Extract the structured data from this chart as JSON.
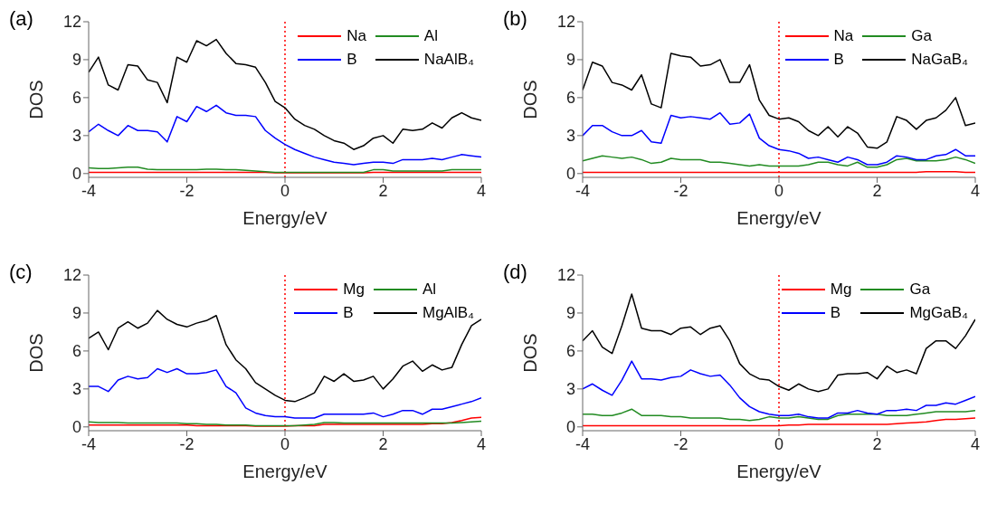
{
  "chart_data": [
    {
      "type": "line",
      "annotations": [
        "(a)"
      ],
      "xlabel": "Energy/eV",
      "ylabel": "DOS",
      "xlim": [
        -4,
        4
      ],
      "xticks": [
        -4,
        -2,
        0,
        2,
        4
      ],
      "ylim": [
        -0.3,
        12
      ],
      "yticks": [
        0,
        3,
        6,
        9,
        12
      ],
      "legend": "top right",
      "line_style": "solid",
      "ref_lines": [
        {
          "axis": "x",
          "value": 0,
          "color": "#ff0000",
          "line_style": "dotted"
        }
      ],
      "x": [
        -4,
        -3.8,
        -3.6,
        -3.4,
        -3.2,
        -3,
        -2.8,
        -2.6,
        -2.4,
        -2.2,
        -2,
        -1.8,
        -1.6,
        -1.4,
        -1.2,
        -1,
        -0.8,
        -0.6,
        -0.4,
        -0.2,
        0,
        0.2,
        0.4,
        0.6,
        0.8,
        1,
        1.2,
        1.4,
        1.6,
        1.8,
        2,
        2.2,
        2.4,
        2.6,
        2.8,
        3,
        3.2,
        3.4,
        3.6,
        3.8,
        4
      ],
      "series": [
        {
          "name": "Na",
          "color": "#ff0000",
          "values": [
            0.1,
            0.1,
            0.1,
            0.1,
            0.1,
            0.1,
            0.1,
            0.1,
            0.1,
            0.1,
            0.1,
            0.1,
            0.1,
            0.1,
            0.1,
            0.1,
            0.1,
            0.1,
            0.1,
            0.05,
            0.05,
            0.05,
            0.05,
            0.05,
            0.05,
            0.05,
            0.05,
            0.05,
            0.05,
            0.1,
            0.1,
            0.1,
            0.1,
            0.1,
            0.1,
            0.1,
            0.1,
            0.1,
            0.1,
            0.1,
            0.1
          ]
        },
        {
          "name": "Al",
          "color": "#228b22",
          "values": [
            0.45,
            0.4,
            0.4,
            0.45,
            0.5,
            0.5,
            0.35,
            0.3,
            0.3,
            0.3,
            0.3,
            0.3,
            0.35,
            0.35,
            0.3,
            0.3,
            0.25,
            0.2,
            0.15,
            0.1,
            0.1,
            0.1,
            0.1,
            0.1,
            0.1,
            0.1,
            0.1,
            0.1,
            0.1,
            0.3,
            0.3,
            0.2,
            0.2,
            0.2,
            0.2,
            0.2,
            0.2,
            0.3,
            0.3,
            0.3,
            0.3
          ]
        },
        {
          "name": "B",
          "color": "#0000ff",
          "values": [
            3.3,
            3.9,
            3.4,
            3,
            3.8,
            3.4,
            3.4,
            3.3,
            2.5,
            4.5,
            4.1,
            5.3,
            4.9,
            5.4,
            4.8,
            4.6,
            4.6,
            4.5,
            3.4,
            2.8,
            2.3,
            1.9,
            1.6,
            1.3,
            1.1,
            0.9,
            0.8,
            0.7,
            0.8,
            0.9,
            0.9,
            0.8,
            1.1,
            1.1,
            1.1,
            1.2,
            1.1,
            1.3,
            1.5,
            1.4,
            1.3
          ]
        },
        {
          "name": "NaAlB₄",
          "color": "#000000",
          "values": [
            8,
            9.2,
            7,
            6.6,
            8.6,
            8.5,
            7.4,
            7.2,
            5.6,
            9.2,
            8.8,
            10.5,
            10.1,
            10.6,
            9.5,
            8.7,
            8.6,
            8.4,
            7.2,
            5.7,
            5.2,
            4.3,
            3.8,
            3.5,
            3,
            2.6,
            2.4,
            1.9,
            2.2,
            2.8,
            3,
            2.4,
            3.5,
            3.4,
            3.5,
            4,
            3.6,
            4.4,
            4.8,
            4.4,
            4.2
          ]
        }
      ]
    },
    {
      "type": "line",
      "annotations": [
        "(b)"
      ],
      "xlabel": "Energy/eV",
      "ylabel": "DOS",
      "xlim": [
        -4,
        4
      ],
      "xticks": [
        -4,
        -2,
        0,
        2,
        4
      ],
      "ylim": [
        -0.3,
        12
      ],
      "yticks": [
        0,
        3,
        6,
        9,
        12
      ],
      "legend": "top right",
      "line_style": "solid",
      "ref_lines": [
        {
          "axis": "x",
          "value": 0,
          "color": "#ff0000",
          "line_style": "dotted"
        }
      ],
      "x": [
        -4,
        -3.8,
        -3.6,
        -3.4,
        -3.2,
        -3,
        -2.8,
        -2.6,
        -2.4,
        -2.2,
        -2,
        -1.8,
        -1.6,
        -1.4,
        -1.2,
        -1,
        -0.8,
        -0.6,
        -0.4,
        -0.2,
        0,
        0.2,
        0.4,
        0.6,
        0.8,
        1,
        1.2,
        1.4,
        1.6,
        1.8,
        2,
        2.2,
        2.4,
        2.6,
        2.8,
        3,
        3.2,
        3.4,
        3.6,
        3.8,
        4
      ],
      "series": [
        {
          "name": "Na",
          "color": "#ff0000",
          "values": [
            0.1,
            0.1,
            0.1,
            0.1,
            0.1,
            0.1,
            0.1,
            0.1,
            0.1,
            0.1,
            0.1,
            0.1,
            0.1,
            0.1,
            0.1,
            0.1,
            0.1,
            0.1,
            0.1,
            0.1,
            0.1,
            0.1,
            0.1,
            0.1,
            0.1,
            0.1,
            0.1,
            0.1,
            0.1,
            0.1,
            0.1,
            0.1,
            0.1,
            0.1,
            0.1,
            0.15,
            0.15,
            0.15,
            0.15,
            0.1,
            0.1
          ]
        },
        {
          "name": "Ga",
          "color": "#228b22",
          "values": [
            1,
            1.2,
            1.4,
            1.3,
            1.2,
            1.3,
            1.1,
            0.8,
            0.9,
            1.2,
            1.1,
            1.1,
            1.1,
            0.9,
            0.9,
            0.8,
            0.7,
            0.6,
            0.7,
            0.6,
            0.6,
            0.6,
            0.6,
            0.7,
            0.9,
            0.9,
            0.7,
            0.6,
            0.9,
            0.5,
            0.5,
            0.7,
            1.1,
            1.2,
            1,
            1,
            1,
            1.1,
            1.3,
            1.1,
            0.8
          ]
        },
        {
          "name": "B",
          "color": "#0000ff",
          "values": [
            3,
            3.8,
            3.8,
            3.3,
            3,
            3,
            3.4,
            2.5,
            2.4,
            4.6,
            4.4,
            4.5,
            4.4,
            4.3,
            4.8,
            3.9,
            4,
            4.7,
            2.8,
            2.2,
            1.9,
            1.8,
            1.6,
            1.2,
            1.3,
            1.1,
            0.9,
            1.3,
            1.1,
            0.7,
            0.7,
            0.9,
            1.4,
            1.3,
            1.1,
            1.1,
            1.4,
            1.5,
            1.9,
            1.4,
            1.4
          ]
        },
        {
          "name": "NaGaB₄",
          "color": "#000000",
          "values": [
            6.6,
            8.8,
            8.5,
            7.2,
            7,
            6.6,
            7.8,
            5.5,
            5.2,
            9.5,
            9.3,
            9.2,
            8.5,
            8.6,
            9,
            7.2,
            7.2,
            8.6,
            5.8,
            4.6,
            4.3,
            4.4,
            4.1,
            3.4,
            3,
            3.7,
            2.9,
            3.7,
            3.2,
            2.1,
            2,
            2.5,
            4.5,
            4.2,
            3.5,
            4.2,
            4.4,
            5,
            6,
            3.8,
            4
          ]
        }
      ]
    },
    {
      "type": "line",
      "annotations": [
        "(c)"
      ],
      "xlabel": "Energy/eV",
      "ylabel": "DOS",
      "xlim": [
        -4,
        4
      ],
      "xticks": [
        -4,
        -2,
        0,
        2,
        4
      ],
      "ylim": [
        -0.3,
        12
      ],
      "yticks": [
        0,
        3,
        6,
        9,
        12
      ],
      "legend": "top right",
      "line_style": "solid",
      "ref_lines": [
        {
          "axis": "x",
          "value": 0,
          "color": "#ff0000",
          "line_style": "dotted"
        }
      ],
      "x": [
        -4,
        -3.8,
        -3.6,
        -3.4,
        -3.2,
        -3,
        -2.8,
        -2.6,
        -2.4,
        -2.2,
        -2,
        -1.8,
        -1.6,
        -1.4,
        -1.2,
        -1,
        -0.8,
        -0.6,
        -0.4,
        -0.2,
        0,
        0.2,
        0.4,
        0.6,
        0.8,
        1,
        1.2,
        1.4,
        1.6,
        1.8,
        2,
        2.2,
        2.4,
        2.6,
        2.8,
        3,
        3.2,
        3.4,
        3.6,
        3.8,
        4
      ],
      "series": [
        {
          "name": "Mg",
          "color": "#ff0000",
          "values": [
            0.15,
            0.15,
            0.15,
            0.15,
            0.15,
            0.15,
            0.15,
            0.15,
            0.15,
            0.15,
            0.15,
            0.1,
            0.1,
            0.1,
            0.1,
            0.1,
            0.1,
            0.05,
            0.05,
            0.05,
            0.05,
            0.1,
            0.1,
            0.1,
            0.2,
            0.2,
            0.2,
            0.2,
            0.2,
            0.2,
            0.2,
            0.2,
            0.2,
            0.2,
            0.2,
            0.25,
            0.25,
            0.35,
            0.5,
            0.7,
            0.75
          ]
        },
        {
          "name": "Al",
          "color": "#228b22",
          "values": [
            0.4,
            0.35,
            0.35,
            0.35,
            0.3,
            0.3,
            0.3,
            0.3,
            0.3,
            0.3,
            0.25,
            0.25,
            0.2,
            0.2,
            0.15,
            0.15,
            0.15,
            0.1,
            0.1,
            0.1,
            0.1,
            0.1,
            0.15,
            0.2,
            0.35,
            0.35,
            0.3,
            0.3,
            0.3,
            0.3,
            0.3,
            0.3,
            0.3,
            0.3,
            0.3,
            0.3,
            0.3,
            0.3,
            0.35,
            0.4,
            0.45
          ]
        },
        {
          "name": "B",
          "color": "#0000ff",
          "values": [
            3.2,
            3.2,
            2.8,
            3.7,
            4,
            3.8,
            3.9,
            4.6,
            4.3,
            4.6,
            4.2,
            4.2,
            4.3,
            4.5,
            3.2,
            2.7,
            1.5,
            1.1,
            0.9,
            0.8,
            0.8,
            0.7,
            0.7,
            0.7,
            1,
            1,
            1,
            1,
            1,
            1.1,
            0.8,
            1,
            1.3,
            1.3,
            1,
            1.4,
            1.4,
            1.6,
            1.8,
            2,
            2.3
          ]
        },
        {
          "name": "MgAlB₄",
          "color": "#000000",
          "values": [
            7,
            7.5,
            6.1,
            7.8,
            8.3,
            7.8,
            8.2,
            9.2,
            8.5,
            8.1,
            7.9,
            8.2,
            8.4,
            8.8,
            6.5,
            5.3,
            4.6,
            3.5,
            3,
            2.5,
            2.1,
            2,
            2.3,
            2.7,
            4,
            3.6,
            4.2,
            3.6,
            3.7,
            4,
            3,
            3.8,
            4.8,
            5.2,
            4.4,
            4.9,
            4.5,
            4.7,
            6.5,
            8,
            8.5
          ]
        }
      ]
    },
    {
      "type": "line",
      "annotations": [
        "(d)"
      ],
      "xlabel": "Energy/eV",
      "ylabel": "DOS",
      "xlim": [
        -4,
        4
      ],
      "xticks": [
        -4,
        -2,
        0,
        2,
        4
      ],
      "ylim": [
        -0.3,
        12
      ],
      "yticks": [
        0,
        3,
        6,
        9,
        12
      ],
      "legend": "top right",
      "line_style": "solid",
      "ref_lines": [
        {
          "axis": "x",
          "value": 0,
          "color": "#ff0000",
          "line_style": "dotted"
        }
      ],
      "x": [
        -4,
        -3.8,
        -3.6,
        -3.4,
        -3.2,
        -3,
        -2.8,
        -2.6,
        -2.4,
        -2.2,
        -2,
        -1.8,
        -1.6,
        -1.4,
        -1.2,
        -1,
        -0.8,
        -0.6,
        -0.4,
        -0.2,
        0,
        0.2,
        0.4,
        0.6,
        0.8,
        1,
        1.2,
        1.4,
        1.6,
        1.8,
        2,
        2.2,
        2.4,
        2.6,
        2.8,
        3,
        3.2,
        3.4,
        3.6,
        3.8,
        4
      ],
      "series": [
        {
          "name": "Mg",
          "color": "#ff0000",
          "values": [
            0.1,
            0.1,
            0.1,
            0.1,
            0.1,
            0.1,
            0.1,
            0.1,
            0.1,
            0.1,
            0.1,
            0.1,
            0.1,
            0.1,
            0.1,
            0.1,
            0.1,
            0.1,
            0.1,
            0.1,
            0.1,
            0.15,
            0.15,
            0.2,
            0.2,
            0.2,
            0.2,
            0.2,
            0.2,
            0.2,
            0.2,
            0.2,
            0.25,
            0.3,
            0.35,
            0.4,
            0.5,
            0.6,
            0.6,
            0.65,
            0.7
          ]
        },
        {
          "name": "Ga",
          "color": "#228b22",
          "values": [
            1,
            1,
            0.9,
            0.9,
            1.1,
            1.4,
            0.9,
            0.9,
            0.9,
            0.8,
            0.8,
            0.7,
            0.7,
            0.7,
            0.7,
            0.6,
            0.6,
            0.5,
            0.6,
            0.8,
            0.7,
            0.7,
            0.8,
            0.7,
            0.6,
            0.6,
            0.9,
            1,
            1,
            1,
            1,
            0.9,
            0.9,
            0.9,
            1,
            1.1,
            1.2,
            1.2,
            1.2,
            1.2,
            1.3
          ]
        },
        {
          "name": "B",
          "color": "#0000ff",
          "values": [
            3,
            3.4,
            2.9,
            2.5,
            3.7,
            5.2,
            3.8,
            3.8,
            3.7,
            3.9,
            4,
            4.5,
            4.2,
            4,
            4.1,
            3.3,
            2.3,
            1.6,
            1.2,
            1,
            0.9,
            0.9,
            1,
            0.8,
            0.7,
            0.7,
            1.1,
            1.1,
            1.3,
            1.1,
            1,
            1.3,
            1.3,
            1.4,
            1.3,
            1.7,
            1.7,
            1.9,
            1.8,
            2.1,
            2.4
          ]
        },
        {
          "name": "MgGaB₄",
          "color": "#000000",
          "values": [
            6.8,
            7.6,
            6.3,
            5.8,
            8,
            10.5,
            7.8,
            7.6,
            7.6,
            7.3,
            7.8,
            7.9,
            7.3,
            7.8,
            8,
            6.8,
            5,
            4.2,
            3.8,
            3.7,
            3.2,
            2.9,
            3.4,
            3,
            2.8,
            3,
            4.1,
            4.2,
            4.2,
            4.3,
            3.8,
            4.8,
            4.3,
            4.5,
            4.2,
            6.2,
            6.8,
            6.8,
            6.2,
            7.2,
            8.5
          ]
        }
      ]
    }
  ]
}
